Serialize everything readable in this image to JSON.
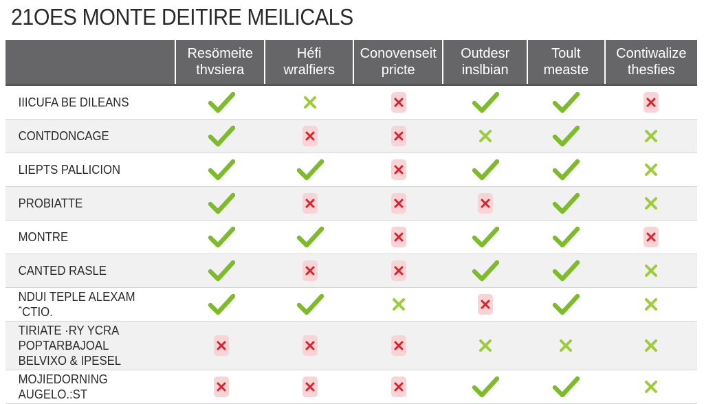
{
  "page": {
    "title": "21OES MONTE DEITIRE MEILICALS"
  },
  "colors": {
    "header_bg": "#666668",
    "check": "#7dbb2a",
    "light_cross": "#9ccc3a",
    "red_cross": "#d8232a",
    "red_bg": "#f8d4d6"
  },
  "icons": {
    "check": "check-icon",
    "light_cross": "light-cross-icon",
    "red_cross": "red-cross-icon"
  },
  "table": {
    "columns": [
      "",
      "Resömeite\nthvsiera",
      "Héfi\nwralfiers",
      "Conovenseit\npricte",
      "Outdesr\ninslbian",
      "Toult\nmeaste",
      "Contiwalize\nthesfies"
    ],
    "rows": [
      {
        "label": "IIICUFA BE DILEANS",
        "marks": [
          "check",
          "light_cross",
          "red_cross",
          "check",
          "check",
          "red_cross"
        ]
      },
      {
        "label": "CONTDONCAGE",
        "marks": [
          "check",
          "red_cross",
          "red_cross",
          "light_cross",
          "check",
          "light_cross"
        ]
      },
      {
        "label": "LIEPTS PALLICION",
        "marks": [
          "check",
          "check",
          "red_cross",
          "check",
          "check",
          "light_cross"
        ]
      },
      {
        "label": "PROBIATTE",
        "marks": [
          "check",
          "red_cross",
          "red_cross",
          "red_cross",
          "check",
          "light_cross"
        ]
      },
      {
        "label": "MONTRE",
        "marks": [
          "check",
          "check",
          "red_cross",
          "check",
          "check",
          "red_cross"
        ]
      },
      {
        "label": "CANTED RASLE",
        "marks": [
          "check",
          "red_cross",
          "red_cross",
          "check",
          "check",
          "light_cross"
        ]
      },
      {
        "label": "NDUI TEPLE ALEXAM ˆCTIO.",
        "marks": [
          "check",
          "check",
          "light_cross",
          "red_cross",
          "check",
          "light_cross"
        ]
      },
      {
        "label": "TIRIATE ·RY YCRA POPTARBAJOAL\nBELVIXO & IPESEL",
        "marks": [
          "red_cross",
          "red_cross",
          "red_cross",
          "light_cross",
          "light_cross",
          "light_cross"
        ]
      },
      {
        "label": "MOJIEDORNING AUGELO.:ST",
        "marks": [
          "red_cross",
          "red_cross",
          "red_cross",
          "check",
          "check",
          "light_cross"
        ]
      }
    ]
  }
}
